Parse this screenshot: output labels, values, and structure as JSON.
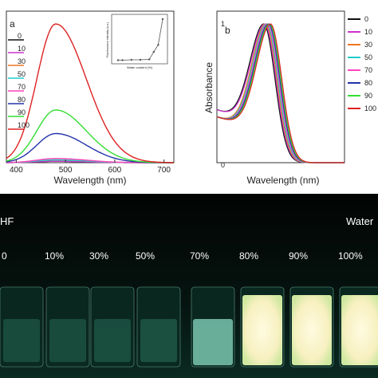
{
  "chart_data": [
    {
      "panel_label": "a",
      "type": "line",
      "xlabel": "Wavelength (nm)",
      "ylabel": "",
      "xlim": [
        380,
        720
      ],
      "ylim": [
        0,
        1
      ],
      "x_ticks": [
        "400",
        "500",
        "600",
        "700"
      ],
      "legend": [
        "0",
        "10",
        "30",
        "50",
        "70",
        "80",
        "90",
        "100"
      ],
      "legend_position": "left",
      "series": [
        {
          "name": "0",
          "color": "#111111",
          "peak": 0.01
        },
        {
          "name": "10",
          "color": "#cc33cc",
          "peak": 0.01
        },
        {
          "name": "30",
          "color": "#ee7722",
          "peak": 0.02
        },
        {
          "name": "50",
          "color": "#22cccc",
          "peak": 0.02
        },
        {
          "name": "70",
          "color": "#ff44bb",
          "peak": 0.03
        },
        {
          "name": "80",
          "color": "#2233aa",
          "peak": 0.21
        },
        {
          "name": "90",
          "color": "#33dd33",
          "peak": 0.38
        },
        {
          "name": "100",
          "color": "#dd2222",
          "peak": 1.0
        }
      ],
      "peak_x": 480,
      "inset": {
        "type": "line",
        "xlabel": "Water content (%)",
        "ylabel": "Fluorescence Intensity (a.u.)",
        "x": [
          0,
          10,
          30,
          50,
          70,
          80,
          90,
          100
        ],
        "y": [
          0.01,
          0.01,
          0.02,
          0.02,
          0.03,
          0.21,
          0.38,
          1.0
        ]
      }
    },
    {
      "panel_label": "b",
      "type": "line",
      "xlabel": "Wavelength (nm)",
      "ylabel": "Absorbance",
      "legend": [
        "0",
        "10",
        "30",
        "50",
        "70",
        "80",
        "90",
        "100"
      ],
      "legend_position": "right",
      "series": [
        {
          "name": "0",
          "color": "#111111"
        },
        {
          "name": "10",
          "color": "#cc33cc"
        },
        {
          "name": "30",
          "color": "#ee7722"
        },
        {
          "name": "50",
          "color": "#22cccc"
        },
        {
          "name": "70",
          "color": "#ff44bb"
        },
        {
          "name": "80",
          "color": "#2233aa"
        },
        {
          "name": "90",
          "color": "#33dd33"
        },
        {
          "name": "100",
          "color": "#dd2222"
        }
      ],
      "y_ticks": [
        "0",
        "1"
      ]
    }
  ],
  "photo": {
    "left_label": "HF",
    "right_label": "Water",
    "vial_labels": [
      "0",
      "10%",
      "30%",
      "50%",
      "70%",
      "80%",
      "90%",
      "100%"
    ],
    "glow": [
      0.0,
      0.0,
      0.05,
      0.1,
      0.35,
      1.0,
      1.0,
      1.0
    ]
  }
}
